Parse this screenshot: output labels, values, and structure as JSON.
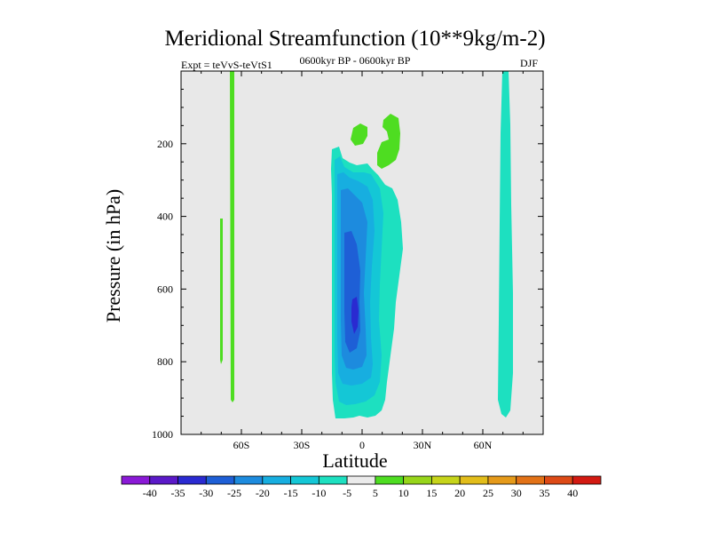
{
  "chart_data": {
    "type": "contour",
    "title": "Meridional Streamfunction (10**9kg/m-2)",
    "subtitle": "0600kyr BP - 0600kyr BP",
    "experiment_label": "Expt = teVvS-teVtS1",
    "season": "DJF",
    "xlabel": "Latitude",
    "ylabel": "Pressure (in hPa)",
    "xlim": [
      -90,
      90
    ],
    "ylim": [
      1000,
      0
    ],
    "x_ticks": [
      {
        "value": -60,
        "label": "60S"
      },
      {
        "value": -30,
        "label": "30S"
      },
      {
        "value": 0,
        "label": "0"
      },
      {
        "value": 30,
        "label": "30N"
      },
      {
        "value": 60,
        "label": "60N"
      }
    ],
    "y_ticks": [
      {
        "value": 200,
        "label": "200"
      },
      {
        "value": 400,
        "label": "400"
      },
      {
        "value": 600,
        "label": "600"
      },
      {
        "value": 800,
        "label": "800"
      },
      {
        "value": 1000,
        "label": "1000"
      }
    ],
    "levels": [
      -40,
      -35,
      -30,
      -25,
      -20,
      -15,
      -10,
      -5,
      5,
      10,
      15,
      20,
      25,
      30,
      35,
      40
    ],
    "colorbar_colors": [
      "#8a19d6",
      "#5b19c8",
      "#2a2ad1",
      "#1e5fd6",
      "#1d8bde",
      "#17aee0",
      "#14c7d6",
      "#1de0c0",
      "#ebebeb",
      "#4edd21",
      "#97d51a",
      "#c6d41a",
      "#e2bd1a",
      "#e59a1a",
      "#e27217",
      "#dd4a16",
      "#d31a12"
    ],
    "background_color": "#e8e8e8",
    "features": [
      {
        "name": "band-58S-green",
        "lat_range": [
          -62,
          -61
        ],
        "p_range": [
          0,
          910
        ],
        "value": 7
      },
      {
        "name": "band-66S-green",
        "lat_range": [
          -67,
          -66
        ],
        "p_range": [
          410,
          815
        ],
        "value": 7
      },
      {
        "name": "band-72N-cyan",
        "lat_range": [
          68,
          72
        ],
        "p_range": [
          0,
          960
        ],
        "value": -7
      },
      {
        "name": "tropical-cell-outer",
        "lat_range": [
          -14,
          20
        ],
        "p_range": [
          200,
          960
        ],
        "value": -7
      },
      {
        "name": "tropical-cell-min",
        "lat_range": [
          -4,
          -2
        ],
        "p_range": [
          630,
          720
        ],
        "value": -32
      },
      {
        "name": "upper-green-blob-1",
        "lat_range": [
          -4,
          3
        ],
        "p_range": [
          140,
          200
        ],
        "value": 7
      },
      {
        "name": "upper-green-blob-2",
        "lat_range": [
          8,
          18
        ],
        "p_range": [
          125,
          235
        ],
        "value": 7
      }
    ]
  }
}
